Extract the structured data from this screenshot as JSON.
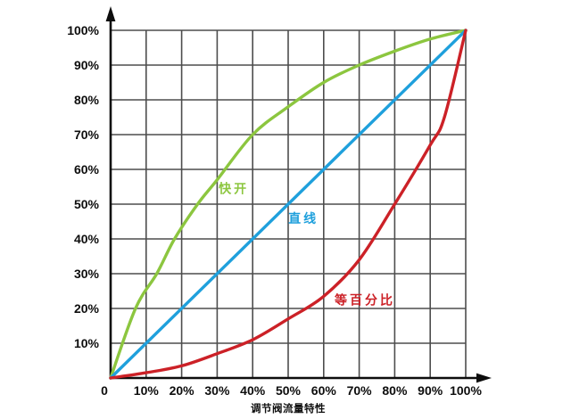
{
  "chart_data": {
    "type": "line",
    "title": "调节阀流量特性",
    "xlabel": "",
    "ylabel": "",
    "xlim": [
      0,
      100
    ],
    "ylim": [
      0,
      100
    ],
    "grid": "on",
    "legend_position": "inline-labels",
    "x_ticks": [
      "0",
      "10%",
      "20%",
      "30%",
      "40%",
      "50%",
      "60%",
      "70%",
      "80%",
      "90%",
      "100%"
    ],
    "y_ticks": [
      "10%",
      "20%",
      "30%",
      "40%",
      "50%",
      "60%",
      "70%",
      "80%",
      "90%",
      "100%"
    ],
    "colors": {
      "background": "#ffffff",
      "grid": "#4d4d4d",
      "axis": "#0d0d0d",
      "quick_opening": "#8cc63f",
      "linear": "#1fa0dc",
      "equal_percentage": "#cc2127"
    },
    "series": [
      {
        "id": "quick-opening",
        "name": "快开",
        "color": "#8cc63f",
        "label_anchor": {
          "x": 34.7,
          "y": 54.5
        },
        "points": [
          [
            0,
            0
          ],
          [
            7,
            20
          ],
          [
            13,
            30
          ],
          [
            18,
            40
          ],
          [
            24.5,
            50
          ],
          [
            30,
            57
          ],
          [
            40,
            70
          ],
          [
            50,
            78
          ],
          [
            60,
            85
          ],
          [
            70,
            90
          ],
          [
            80,
            94
          ],
          [
            90,
            97.5
          ],
          [
            100,
            100
          ]
        ]
      },
      {
        "id": "linear",
        "name": "直线",
        "color": "#1fa0dc",
        "label_anchor": {
          "x": 54.3,
          "y": 45.9
        },
        "points": [
          [
            0,
            0
          ],
          [
            100,
            100
          ]
        ]
      },
      {
        "id": "equal-percentage",
        "name": "等百分比",
        "color": "#cc2127",
        "label_anchor": {
          "x": 71.6,
          "y": 22.4
        },
        "points": [
          [
            0,
            0
          ],
          [
            10,
            1.5
          ],
          [
            20,
            3.5
          ],
          [
            30,
            7
          ],
          [
            40,
            11
          ],
          [
            50,
            17
          ],
          [
            60,
            23.5
          ],
          [
            70,
            34
          ],
          [
            80,
            50
          ],
          [
            90,
            67
          ],
          [
            94,
            75
          ],
          [
            100,
            100
          ]
        ]
      }
    ]
  }
}
